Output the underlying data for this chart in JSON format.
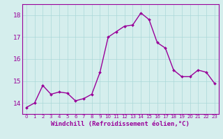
{
  "x": [
    0,
    1,
    2,
    3,
    4,
    5,
    6,
    7,
    8,
    9,
    10,
    11,
    12,
    13,
    14,
    15,
    16,
    17,
    18,
    19,
    20,
    21,
    22,
    23
  ],
  "y": [
    13.8,
    14.0,
    14.8,
    14.4,
    14.5,
    14.45,
    14.1,
    14.2,
    14.4,
    15.4,
    17.0,
    17.25,
    17.5,
    17.55,
    18.1,
    17.8,
    16.75,
    16.5,
    15.5,
    15.2,
    15.2,
    15.5,
    15.4,
    14.9
  ],
  "line_color": "#990099",
  "marker": "D",
  "marker_size": 2.0,
  "bg_color": "#d5eeed",
  "grid_color": "#aad8d8",
  "xlabel": "Windchill (Refroidissement éolien,°C)",
  "xlabel_color": "#990099",
  "ylim": [
    13.5,
    18.5
  ],
  "xlim": [
    -0.5,
    23.5
  ],
  "yticks": [
    14,
    15,
    16,
    17,
    18
  ],
  "ytick_labels": [
    "14",
    "15",
    "16",
    "17",
    "18"
  ],
  "xtick_labels": [
    "0",
    "1",
    "2",
    "3",
    "4",
    "5",
    "6",
    "7",
    "8",
    "9",
    "10",
    "11",
    "12",
    "13",
    "14",
    "15",
    "16",
    "17",
    "18",
    "19",
    "20",
    "21",
    "22",
    "23"
  ],
  "tick_color": "#990099",
  "axis_color": "#990099",
  "line_width": 1.0,
  "xlabel_fontsize": 6.5,
  "xlabel_fontweight": "bold",
  "ytick_fontsize": 6.5,
  "xtick_fontsize": 5.0
}
